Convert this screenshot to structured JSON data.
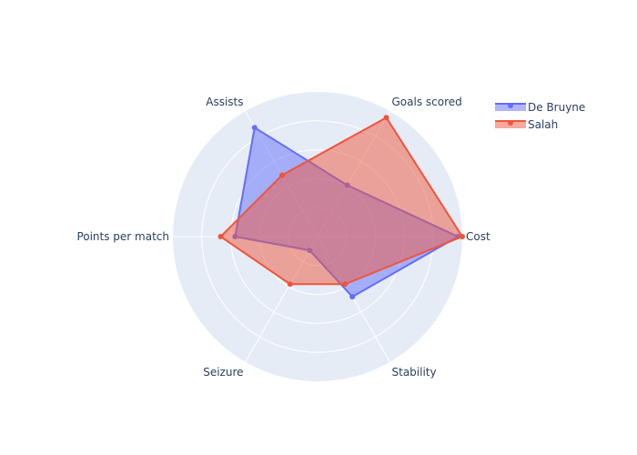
{
  "chart_data": {
    "type": "radar",
    "axes": [
      "Cost",
      "Goals scored",
      "Assists",
      "Points per match",
      "Seizure",
      "Stability"
    ],
    "range": [
      0,
      1
    ],
    "series": [
      {
        "name": "De Bruyne",
        "color": "#636efa",
        "values": [
          0.97,
          0.41,
          0.87,
          0.57,
          0.11,
          0.48
        ]
      },
      {
        "name": "Salah",
        "color": "#ef553b",
        "values": [
          1.0,
          0.95,
          0.49,
          0.67,
          0.38,
          0.38
        ]
      }
    ],
    "grid_color": "#e5ecf6",
    "legend_position": "top-right",
    "title": "",
    "radial_ticks_visible": false
  }
}
